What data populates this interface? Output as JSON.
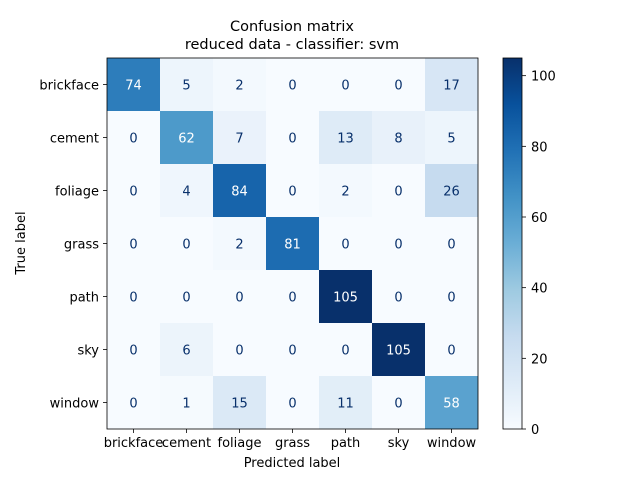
{
  "chart_data": {
    "type": "heatmap",
    "title": "Confusion matrix",
    "subtitle": "reduced data - classifier: svm",
    "xlabel": "Predicted label",
    "ylabel": "True label",
    "x_categories": [
      "brickface",
      "cement",
      "foliage",
      "grass",
      "path",
      "sky",
      "window"
    ],
    "y_categories": [
      "brickface",
      "cement",
      "foliage",
      "grass",
      "path",
      "sky",
      "window"
    ],
    "values": [
      [
        74,
        5,
        2,
        0,
        0,
        0,
        17
      ],
      [
        0,
        62,
        7,
        0,
        13,
        8,
        5
      ],
      [
        0,
        4,
        84,
        0,
        2,
        0,
        26
      ],
      [
        0,
        0,
        2,
        81,
        0,
        0,
        0
      ],
      [
        0,
        0,
        0,
        0,
        105,
        0,
        0
      ],
      [
        0,
        6,
        0,
        0,
        0,
        105,
        0
      ],
      [
        0,
        1,
        15,
        0,
        11,
        0,
        58
      ]
    ],
    "colormap": "Blues",
    "color_range": [
      0,
      105
    ],
    "colorbar_ticks": [
      0,
      20,
      40,
      60,
      80,
      100
    ],
    "grid": false
  }
}
